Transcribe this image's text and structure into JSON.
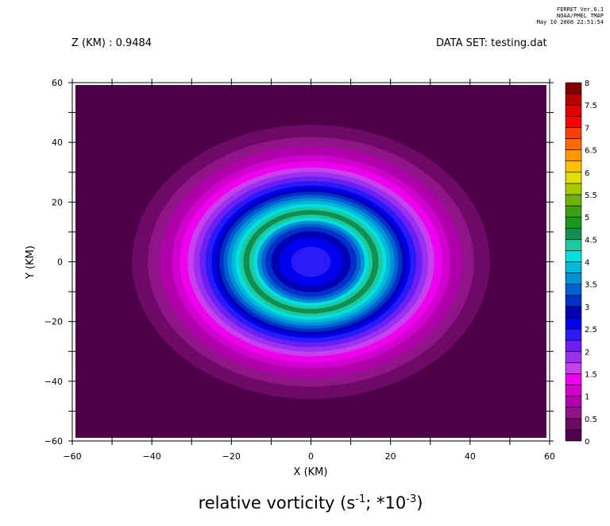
{
  "header": {
    "line1": "FERRET Ver.6.1",
    "line2": "NOAA/PMEL TMAP",
    "line3": "May 10 2008 22:51:54"
  },
  "top_left_label": "Z (KM) : 0.9484",
  "top_right_label": "DATA SET: testing.dat",
  "chart_data": {
    "type": "heatmap",
    "subtype": "filled-contour",
    "title_main": "relative vorticity (s",
    "title_exp1": "-1",
    "title_mid": "; *10",
    "title_exp2": "-3",
    "title_end": ")",
    "xlabel": "X (KM)",
    "ylabel": "Y (KM)",
    "xlim": [
      -60,
      60
    ],
    "ylim": [
      -60,
      60
    ],
    "xticks": [
      -60,
      -40,
      -20,
      0,
      20,
      40,
      60
    ],
    "yticks": [
      -60,
      -40,
      -20,
      0,
      20,
      40,
      60
    ],
    "xtick_labels": [
      "−60",
      "−40",
      "−20",
      "0",
      "20",
      "40",
      "60"
    ],
    "ytick_labels": [
      "−60",
      "−40",
      "−20",
      "0",
      "20",
      "40",
      "60"
    ],
    "center": [
      0,
      0
    ],
    "rings": [
      {
        "radius": 45,
        "level": 0.25
      },
      {
        "radius": 41,
        "level": 0.5
      },
      {
        "radius": 38,
        "level": 0.75
      },
      {
        "radius": 35,
        "level": 1.0
      },
      {
        "radius": 33,
        "level": 1.25
      },
      {
        "radius": 31,
        "level": 1.5
      },
      {
        "radius": 29.5,
        "level": 1.75
      },
      {
        "radius": 28,
        "level": 2.0
      },
      {
        "radius": 26.5,
        "level": 2.25
      },
      {
        "radius": 25,
        "level": 2.5
      },
      {
        "radius": 24,
        "level": 2.75
      },
      {
        "radius": 23,
        "level": 3.0
      },
      {
        "radius": 22,
        "level": 3.25
      },
      {
        "radius": 21,
        "level": 3.5
      },
      {
        "radius": 20,
        "level": 3.75
      },
      {
        "radius": 19,
        "level": 4.0
      },
      {
        "radius": 18,
        "level": 4.25
      },
      {
        "radius": 17,
        "level": 4.5
      },
      {
        "radius": 15.5,
        "level": 4.25
      },
      {
        "radius": 14.5,
        "level": 4.0
      },
      {
        "radius": 13.5,
        "level": 3.5
      },
      {
        "radius": 12.5,
        "level": 3.25
      },
      {
        "radius": 11.5,
        "level": 3.0
      },
      {
        "radius": 10,
        "level": 2.75
      },
      {
        "radius": 8,
        "level": 2.5
      },
      {
        "radius": 5,
        "level": 2.25
      }
    ],
    "colorbar": {
      "levels": [
        "0",
        "0.5",
        "1",
        "1.5",
        "2",
        "2.5",
        "3",
        "3.5",
        "4",
        "4.5",
        "5",
        "5.5",
        "6",
        "6.5",
        "7",
        "7.5",
        "8"
      ],
      "colors": [
        "#4d0047",
        "#6d0a66",
        "#8e1487",
        "#b000ac",
        "#d000cf",
        "#ee00ee",
        "#c840ee",
        "#9a30f0",
        "#6a1ff5",
        "#2a1af5",
        "#0000ee",
        "#0000b4",
        "#0030c8",
        "#0060d0",
        "#0090d8",
        "#00b8d8",
        "#00e0e0",
        "#20c8a0",
        "#109050",
        "#1a9a1a",
        "#3aa015",
        "#70b010",
        "#a8c800",
        "#e0e000",
        "#ffc000",
        "#ff9800",
        "#ff6a00",
        "#ff4000",
        "#ff0000",
        "#e00000",
        "#b80000",
        "#800000"
      ]
    }
  }
}
